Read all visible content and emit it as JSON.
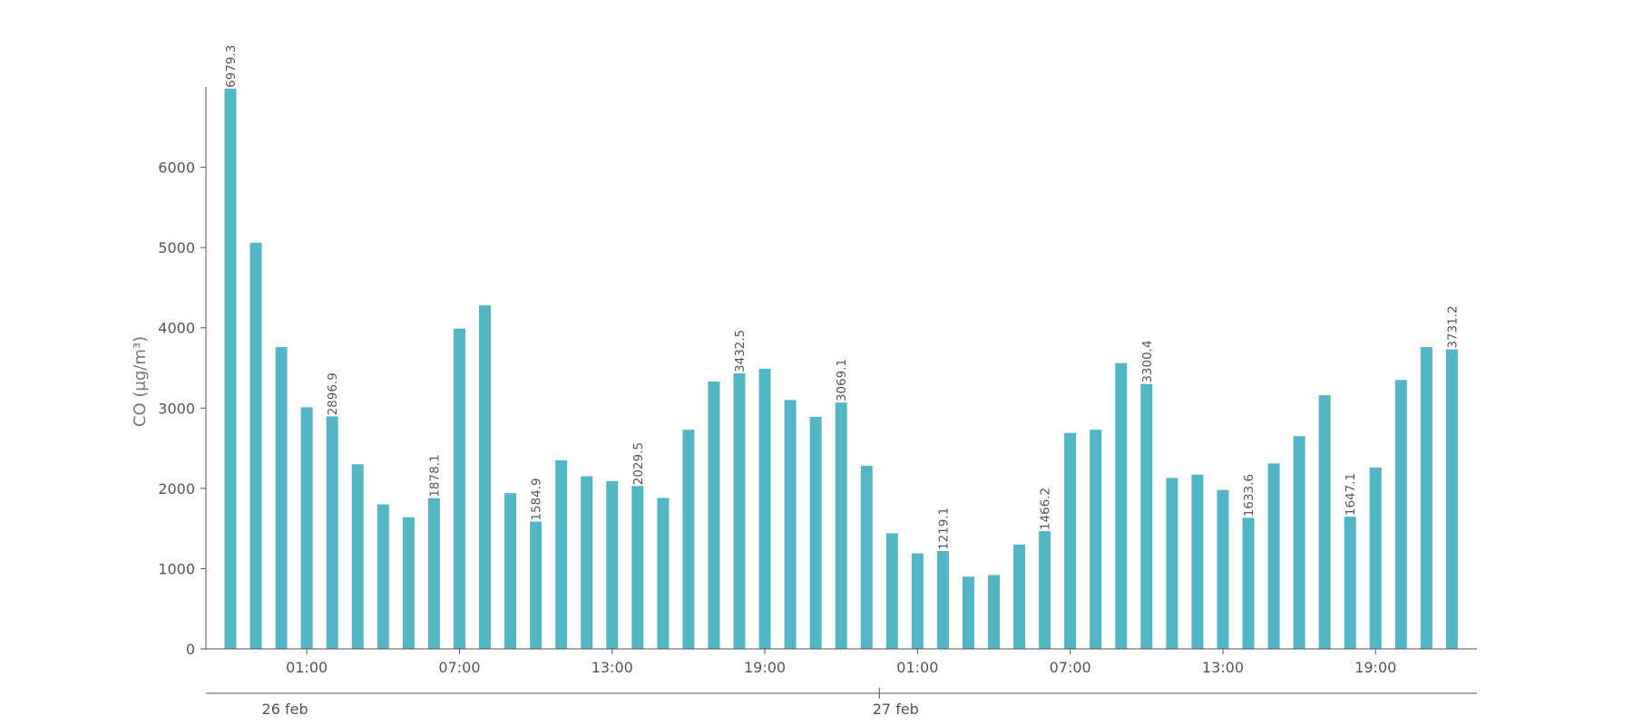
{
  "chart_data": {
    "type": "bar",
    "ylabel": "CO (μg/m³)",
    "ylim": [
      0,
      7000
    ],
    "yticks": [
      0,
      1000,
      2000,
      3000,
      4000,
      5000,
      6000
    ],
    "xtick_labels": [
      {
        "index": 3,
        "label": "01:00"
      },
      {
        "index": 9,
        "label": "07:00"
      },
      {
        "index": 15,
        "label": "13:00"
      },
      {
        "index": 21,
        "label": "19:00"
      },
      {
        "index": 27,
        "label": "01:00"
      },
      {
        "index": 33,
        "label": "07:00"
      },
      {
        "index": 39,
        "label": "13:00"
      },
      {
        "index": 45,
        "label": "19:00"
      }
    ],
    "day_labels": [
      {
        "index": 2,
        "label": "26 feb"
      },
      {
        "index": 26,
        "label": "27 feb"
      }
    ],
    "day_boundary_index": 26,
    "color": "#52b6c4",
    "grid": false,
    "values": [
      6979.3,
      5060,
      3760,
      3010,
      2896.9,
      2300,
      1800,
      1640,
      1878.1,
      3990,
      4280,
      1940,
      1584.9,
      2350,
      2150,
      2090,
      2029.5,
      1880,
      2730,
      3330,
      3432.5,
      3490,
      3100,
      2890,
      3069.1,
      2280,
      1440,
      1190,
      1219.1,
      900,
      920,
      1300,
      1466.2,
      2690,
      2730,
      3560,
      3300.4,
      2130,
      2170,
      1980,
      1633.6,
      2310,
      2650,
      3160,
      1647.1,
      2260,
      3350,
      3760,
      3731.2
    ],
    "annotations": [
      {
        "index": 0,
        "text": "6979.3"
      },
      {
        "index": 4,
        "text": "2896.9"
      },
      {
        "index": 8,
        "text": "1878.1"
      },
      {
        "index": 12,
        "text": "1584.9"
      },
      {
        "index": 16,
        "text": "2029.5"
      },
      {
        "index": 20,
        "text": "3432.5"
      },
      {
        "index": 24,
        "text": "3069.1"
      },
      {
        "index": 28,
        "text": "1219.1"
      },
      {
        "index": 32,
        "text": "1466.2"
      },
      {
        "index": 36,
        "text": "3300.4"
      },
      {
        "index": 40,
        "text": "1633.6"
      },
      {
        "index": 44,
        "text": "1647.1"
      },
      {
        "index": 48,
        "text": "3731.2"
      }
    ]
  }
}
